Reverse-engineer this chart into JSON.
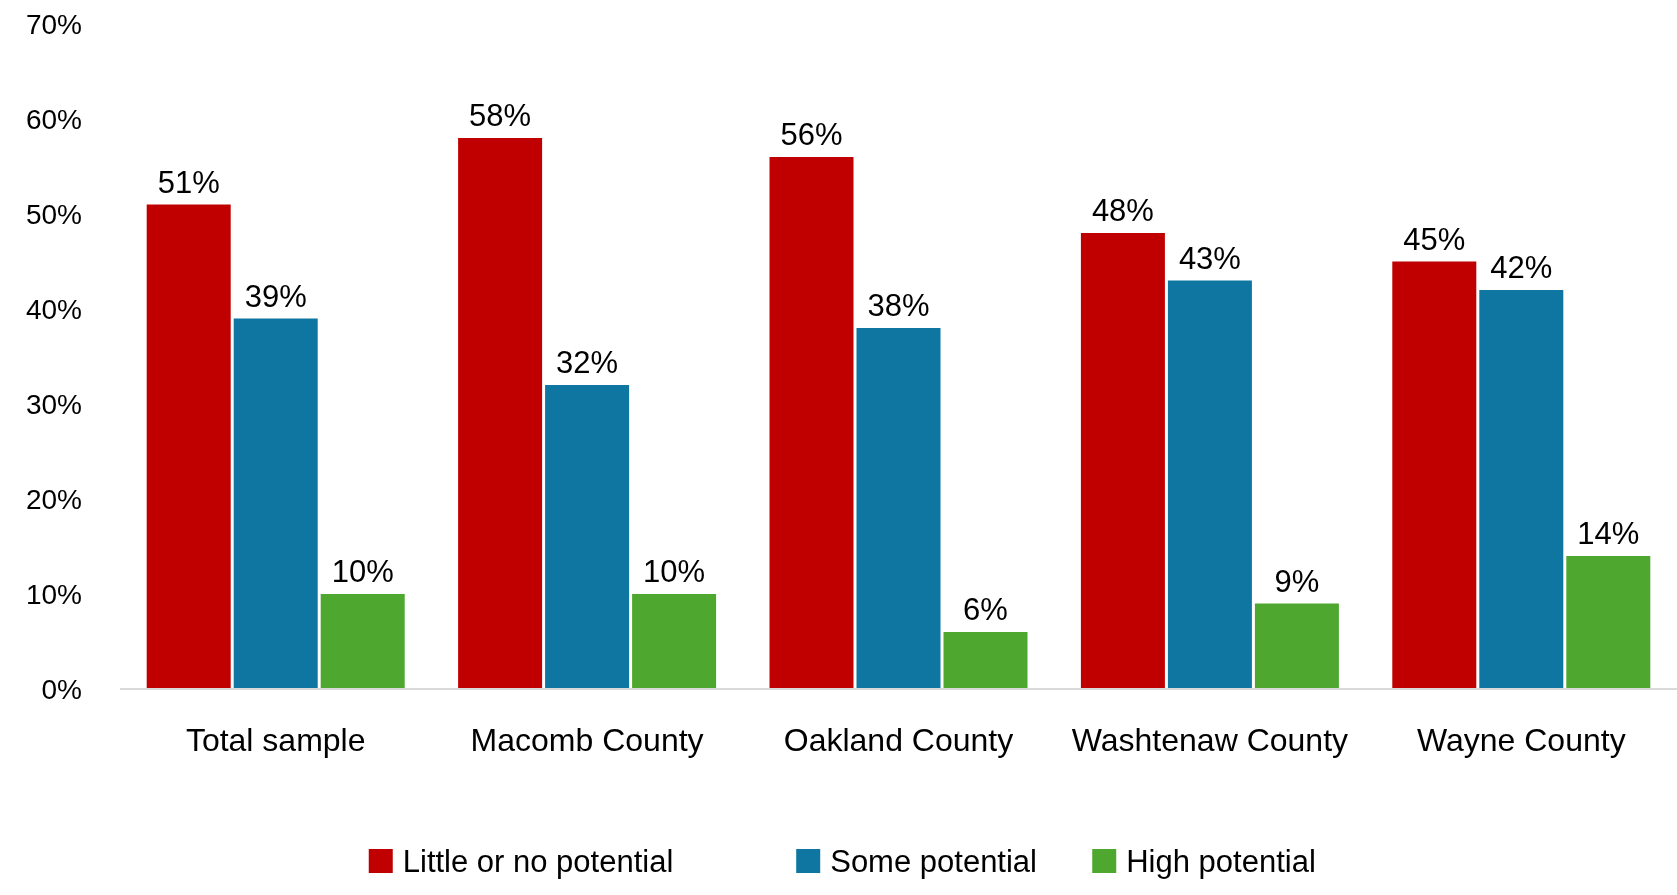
{
  "chart_data": {
    "type": "bar",
    "categories": [
      "Total sample",
      "Macomb County",
      "Oakland County",
      "Washtenaw County",
      "Wayne County"
    ],
    "series": [
      {
        "name": "Little or no potential",
        "color": "#c00000",
        "values": [
          51,
          58,
          56,
          48,
          45
        ],
        "value_labels": [
          "51%",
          "58%",
          "56%",
          "48%",
          "45%"
        ]
      },
      {
        "name": "Some potential",
        "color": "#0e76a0",
        "values": [
          39,
          32,
          38,
          43,
          42
        ],
        "value_labels": [
          "39%",
          "32%",
          "38%",
          "43%",
          "42%"
        ]
      },
      {
        "name": "High potential",
        "color": "#4ea72e",
        "values": [
          10,
          10,
          6,
          9,
          14
        ],
        "value_labels": [
          "10%",
          "10%",
          "6%",
          "9%",
          "14%"
        ]
      }
    ],
    "ylim": [
      0,
      70
    ],
    "yticks": [
      {
        "value": 0,
        "label": "0%"
      },
      {
        "value": 10,
        "label": "10%"
      },
      {
        "value": 20,
        "label": "20%"
      },
      {
        "value": 30,
        "label": "30%"
      },
      {
        "value": 40,
        "label": "40%"
      },
      {
        "value": 50,
        "label": "50%"
      },
      {
        "value": 60,
        "label": "60%"
      },
      {
        "value": 70,
        "label": "70%"
      }
    ],
    "grid": false,
    "legend": "bottom"
  }
}
